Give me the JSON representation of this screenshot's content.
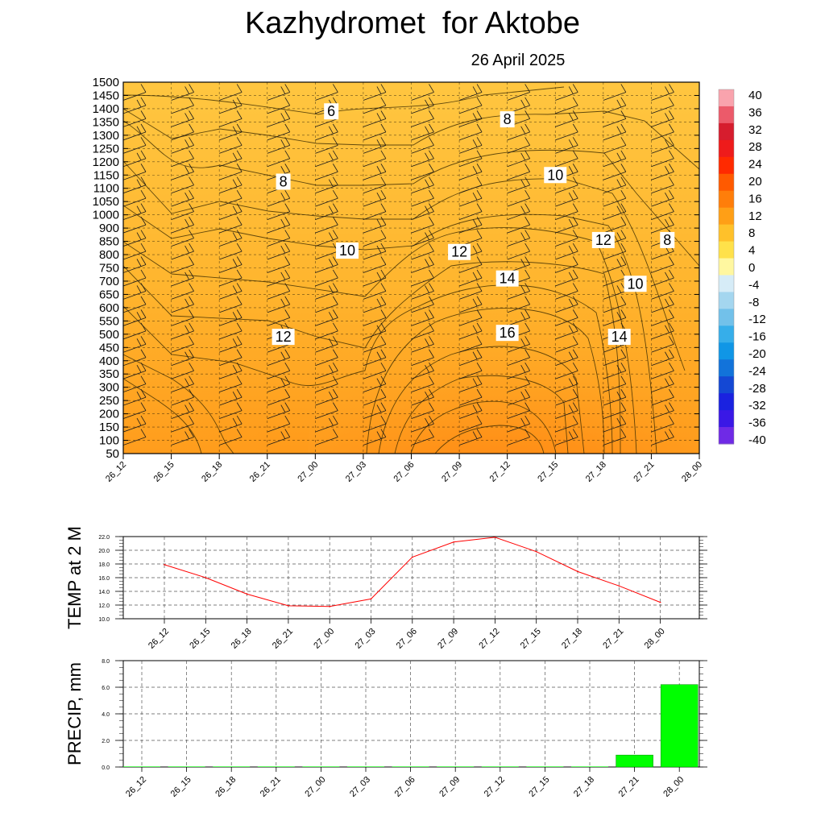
{
  "header": {
    "title": "Kazhydromet  for Aktobe",
    "subtitle": "26 April 2025"
  },
  "colors": {
    "background_mid": "#ffb52e",
    "background_top": "#ffc640",
    "background_low": "#ff6a0a",
    "temp_line": "#ff0000",
    "precip_bar": "#00ff00"
  },
  "chart_data": [
    {
      "type": "heatmap",
      "title": "",
      "xlabel": "",
      "ylabel": "",
      "x": [
        "26_12",
        "26_15",
        "26_18",
        "26_21",
        "27_00",
        "27_03",
        "27_06",
        "27_09",
        "27_12",
        "27_15",
        "27_18",
        "27_21",
        "28_00"
      ],
      "y_levels": [
        50,
        100,
        150,
        200,
        250,
        300,
        350,
        400,
        450,
        500,
        550,
        600,
        650,
        700,
        750,
        800,
        850,
        900,
        1000,
        1050,
        1100,
        1150,
        1200,
        1250,
        1300,
        1350,
        1400,
        1450,
        1500
      ],
      "ylim": [
        50,
        1500
      ],
      "grid": true,
      "contour_labels": [
        {
          "value": "6",
          "x": "27_01",
          "y_height": 1390
        },
        {
          "value": "8",
          "x": "26_22",
          "y_height": 1125
        },
        {
          "value": "8",
          "x": "27_12",
          "y_height": 1360
        },
        {
          "value": "10",
          "x": "27_15",
          "y_height": 1150
        },
        {
          "value": "10",
          "x": "27_02",
          "y_height": 815
        },
        {
          "value": "12",
          "x": "27_09",
          "y_height": 810
        },
        {
          "value": "12",
          "x": "27_18",
          "y_height": 855
        },
        {
          "value": "8",
          "x": "27_22",
          "y_height": 855
        },
        {
          "value": "14",
          "x": "27_12",
          "y_height": 710
        },
        {
          "value": "10",
          "x": "27_20",
          "y_height": 690
        },
        {
          "value": "12",
          "x": "26_22",
          "y_height": 490
        },
        {
          "value": "16",
          "x": "27_12",
          "y_height": 505
        },
        {
          "value": "14",
          "x": "27_19",
          "y_height": 490
        }
      ],
      "colorbar": {
        "labels": [
          "40",
          "36",
          "32",
          "28",
          "24",
          "20",
          "16",
          "12",
          "8",
          "4",
          "0",
          "-4",
          "-8",
          "-12",
          "-16",
          "-20",
          "-24",
          "-28",
          "-32",
          "-36",
          "-40"
        ],
        "colors": [
          "#f9a3ad",
          "#ec5a6a",
          "#d61d2e",
          "#ee1b1b",
          "#ff2a00",
          "#ff5a00",
          "#ff7e0a",
          "#ff9f16",
          "#ffc12a",
          "#ffe14a",
          "#fff7a0",
          "#d6ecf7",
          "#a4d6ef",
          "#72c1ea",
          "#36aeea",
          "#1096e6",
          "#1273da",
          "#1448d4",
          "#1a22e0",
          "#3a18e6",
          "#6f2ae6"
        ]
      }
    },
    {
      "type": "line",
      "ylabel": "TEMP at 2 M",
      "xlabel": "",
      "title": "",
      "categories": [
        "26_12",
        "26_15",
        "26_18",
        "26_21",
        "27_00",
        "27_03",
        "27_06",
        "27_09",
        "27_12",
        "27_15",
        "27_18",
        "27_21",
        "28_00"
      ],
      "values": [
        17.9,
        16.0,
        13.6,
        11.9,
        11.8,
        12.9,
        19.0,
        21.2,
        21.9,
        19.8,
        16.9,
        14.8,
        12.4
      ],
      "ylim": [
        10.0,
        22.0
      ],
      "yticks": [
        "10.0",
        "12.0",
        "14.0",
        "16.0",
        "18.0",
        "20.0",
        "22.0"
      ],
      "grid": true
    },
    {
      "type": "bar",
      "ylabel": "PRECIP, mm",
      "xlabel": "",
      "title": "",
      "categories": [
        "26_12",
        "26_15",
        "26_18",
        "26_21",
        "27_00",
        "27_03",
        "27_06",
        "27_09",
        "27_12",
        "27_15",
        "27_18",
        "27_21",
        "28_00"
      ],
      "values": [
        0,
        0,
        0,
        0,
        0,
        0,
        0,
        0,
        0,
        0,
        0,
        0.9,
        6.2
      ],
      "ylim": [
        0.0,
        8.0
      ],
      "yticks": [
        "0.0",
        "2.0",
        "4.0",
        "6.0",
        "8.0"
      ],
      "grid": true
    }
  ]
}
